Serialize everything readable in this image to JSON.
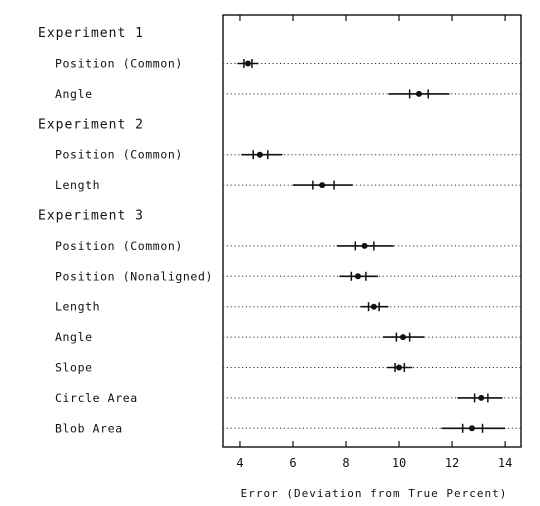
{
  "chart_data": {
    "type": "dot",
    "xlabel": "Error (Deviation from True Percent)",
    "xlim": [
      3.3,
      14.6
    ],
    "xticks": [
      "4",
      "6",
      "8",
      "10",
      "12",
      "14"
    ],
    "groups": [
      {
        "title": "Experiment 1",
        "rows": [
          {
            "label": "Position (Common)",
            "mean": 4.3,
            "inner": [
              4.15,
              4.45
            ],
            "outer": [
              3.9,
              4.7
            ]
          },
          {
            "label": "Angle",
            "mean": 10.75,
            "inner": [
              10.4,
              11.1
            ],
            "outer": [
              9.6,
              11.9
            ]
          }
        ]
      },
      {
        "title": "Experiment 2",
        "rows": [
          {
            "label": "Position (Common)",
            "mean": 4.75,
            "inner": [
              4.5,
              5.05
            ],
            "outer": [
              4.05,
              5.6
            ]
          },
          {
            "label": "Length",
            "mean": 7.1,
            "inner": [
              6.75,
              7.55
            ],
            "outer": [
              6.0,
              8.25
            ]
          }
        ]
      },
      {
        "title": "Experiment 3",
        "rows": [
          {
            "label": "Position (Common)",
            "mean": 8.7,
            "inner": [
              8.35,
              9.05
            ],
            "outer": [
              7.65,
              9.8
            ]
          },
          {
            "label": "Position (Nonaligned)",
            "mean": 8.45,
            "inner": [
              8.2,
              8.75
            ],
            "outer": [
              7.75,
              9.2
            ]
          },
          {
            "label": "Length",
            "mean": 9.05,
            "inner": [
              8.85,
              9.25
            ],
            "outer": [
              8.55,
              9.6
            ]
          },
          {
            "label": "Angle",
            "mean": 10.15,
            "inner": [
              9.9,
              10.4
            ],
            "outer": [
              9.4,
              10.95
            ]
          },
          {
            "label": "Slope",
            "mean": 10.0,
            "inner": [
              9.85,
              10.2
            ],
            "outer": [
              9.55,
              10.5
            ]
          },
          {
            "label": "Circle Area",
            "mean": 13.1,
            "inner": [
              12.85,
              13.35
            ],
            "outer": [
              12.2,
              13.9
            ]
          },
          {
            "label": "Blob Area",
            "mean": 12.75,
            "inner": [
              12.4,
              13.15
            ],
            "outer": [
              11.6,
              14.0
            ]
          }
        ]
      }
    ]
  }
}
